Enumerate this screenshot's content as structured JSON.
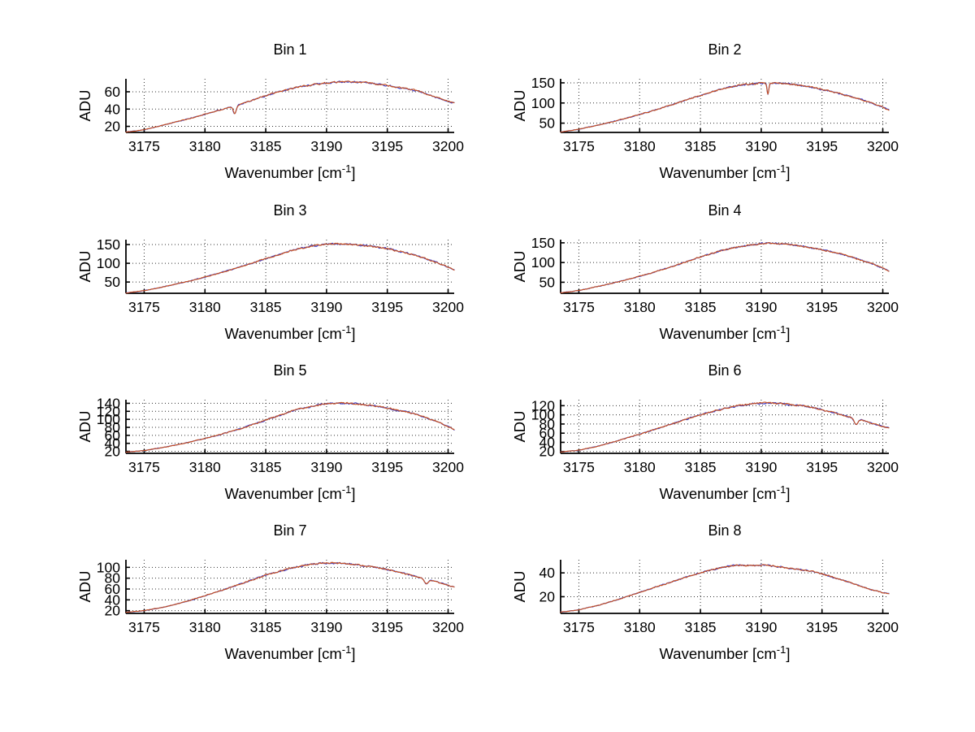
{
  "figure": {
    "background": "#ffffff",
    "grid_color": "#303030",
    "spine_color": "#000000",
    "text_color": "#000000"
  },
  "labels": {
    "ylabel": "ADU",
    "xlabel_main": "Wavenumber [cm",
    "xlabel_sup": "-1",
    "xlabel_end": "]"
  },
  "x_axis": {
    "lim": [
      3173.5,
      3200.5
    ],
    "ticks": [
      3175,
      3180,
      3185,
      3190,
      3195,
      3200
    ]
  },
  "series_style": [
    {
      "name": "spectrum-blue",
      "color": "#4242c8",
      "width": 1.2
    },
    {
      "name": "spectrum-red",
      "color": "#c8501e",
      "width": 1.1
    }
  ],
  "chart_data": [
    {
      "type": "line",
      "title": "Bin 1",
      "ylabel": "ADU",
      "xlabel": "Wavenumber [cm-1]",
      "grid": true,
      "xlim": [
        3173.5,
        3200.5
      ],
      "ylim": [
        13,
        75
      ],
      "yticks": [
        20,
        40,
        60
      ],
      "anchors": [
        [
          3173.5,
          13.5
        ],
        [
          3175,
          16
        ],
        [
          3177,
          23
        ],
        [
          3179,
          30
        ],
        [
          3181,
          38
        ],
        [
          3182.2,
          43
        ],
        [
          3183,
          46
        ],
        [
          3184.5,
          53
        ],
        [
          3186,
          60
        ],
        [
          3187.5,
          65
        ],
        [
          3189,
          68.5
        ],
        [
          3190.5,
          71
        ],
        [
          3191.8,
          72
        ],
        [
          3193,
          71
        ],
        [
          3194.5,
          68.5
        ],
        [
          3196,
          65
        ],
        [
          3197.5,
          61
        ],
        [
          3198.7,
          55
        ],
        [
          3199.8,
          50
        ],
        [
          3200.5,
          47
        ]
      ],
      "dips": [
        {
          "x": 3182.45,
          "depth": 9,
          "width": 0.18
        }
      ]
    },
    {
      "type": "line",
      "title": "Bin 2",
      "ylabel": "ADU",
      "xlabel": "Wavenumber [cm-1]",
      "grid": true,
      "xlim": [
        3173.5,
        3200.5
      ],
      "ylim": [
        27,
        160
      ],
      "yticks": [
        50,
        100,
        150
      ],
      "anchors": [
        [
          3173.5,
          28
        ],
        [
          3175,
          35
        ],
        [
          3177,
          48
        ],
        [
          3179,
          63
        ],
        [
          3181,
          80
        ],
        [
          3183,
          99
        ],
        [
          3184.5,
          114
        ],
        [
          3186,
          128
        ],
        [
          3187.3,
          139
        ],
        [
          3188.5,
          145
        ],
        [
          3189.8,
          149
        ],
        [
          3191,
          150
        ],
        [
          3192.5,
          147
        ],
        [
          3194,
          140
        ],
        [
          3195.5,
          131
        ],
        [
          3197,
          119
        ],
        [
          3198.5,
          106
        ],
        [
          3199.8,
          92
        ],
        [
          3200.5,
          83
        ]
      ],
      "dips": [
        {
          "x": 3190.55,
          "depth": 27,
          "width": 0.1
        }
      ]
    },
    {
      "type": "line",
      "title": "Bin 3",
      "ylabel": "ADU",
      "xlabel": "Wavenumber [cm-1]",
      "grid": true,
      "xlim": [
        3173.5,
        3200.5
      ],
      "ylim": [
        20,
        163
      ],
      "yticks": [
        50,
        100,
        150
      ],
      "anchors": [
        [
          3173.5,
          21
        ],
        [
          3175,
          27
        ],
        [
          3177,
          40
        ],
        [
          3179,
          55
        ],
        [
          3181,
          72
        ],
        [
          3183,
          91
        ],
        [
          3184.8,
          110
        ],
        [
          3186,
          122
        ],
        [
          3187.2,
          135
        ],
        [
          3188.3,
          143
        ],
        [
          3189.3,
          149
        ],
        [
          3190.3,
          152
        ],
        [
          3191.5,
          152
        ],
        [
          3192.8,
          149
        ],
        [
          3194,
          144
        ],
        [
          3195.3,
          137
        ],
        [
          3196.5,
          128
        ],
        [
          3197.8,
          116
        ],
        [
          3199,
          103
        ],
        [
          3200,
          90
        ],
        [
          3200.5,
          82
        ]
      ],
      "dips": []
    },
    {
      "type": "line",
      "title": "Bin 4",
      "ylabel": "ADU",
      "xlabel": "Wavenumber [cm-1]",
      "grid": true,
      "xlim": [
        3173.5,
        3200.5
      ],
      "ylim": [
        22,
        158
      ],
      "yticks": [
        50,
        100,
        150
      ],
      "anchors": [
        [
          3173.5,
          23
        ],
        [
          3175,
          29
        ],
        [
          3177,
          42
        ],
        [
          3179,
          57
        ],
        [
          3181,
          74
        ],
        [
          3183,
          93
        ],
        [
          3184.8,
          112
        ],
        [
          3186.3,
          126
        ],
        [
          3187.5,
          136
        ],
        [
          3188.8,
          143
        ],
        [
          3190,
          148
        ],
        [
          3191,
          149
        ],
        [
          3192.3,
          146
        ],
        [
          3193.5,
          141
        ],
        [
          3195,
          133
        ],
        [
          3196.5,
          122
        ],
        [
          3197.8,
          110
        ],
        [
          3199,
          98
        ],
        [
          3200,
          86
        ],
        [
          3200.5,
          78
        ]
      ],
      "dips": []
    },
    {
      "type": "line",
      "title": "Bin 5",
      "ylabel": "ADU",
      "xlabel": "Wavenumber [cm-1]",
      "grid": true,
      "xlim": [
        3173.5,
        3200.5
      ],
      "ylim": [
        15,
        149
      ],
      "yticks": [
        20,
        40,
        60,
        80,
        100,
        120,
        140
      ],
      "anchors": [
        [
          3173.5,
          18
        ],
        [
          3175,
          22
        ],
        [
          3177,
          32
        ],
        [
          3179,
          45
        ],
        [
          3181,
          60
        ],
        [
          3183,
          77
        ],
        [
          3184.8,
          96
        ],
        [
          3186.3,
          112
        ],
        [
          3187.5,
          124
        ],
        [
          3188.8,
          133
        ],
        [
          3190,
          139
        ],
        [
          3191,
          141
        ],
        [
          3192.3,
          139
        ],
        [
          3193.8,
          134
        ],
        [
          3195.3,
          127
        ],
        [
          3196.8,
          117
        ],
        [
          3198,
          106
        ],
        [
          3199.2,
          93
        ],
        [
          3200.2,
          80
        ],
        [
          3200.5,
          74
        ]
      ],
      "dips": []
    },
    {
      "type": "line",
      "title": "Bin 6",
      "ylabel": "ADU",
      "xlabel": "Wavenumber [cm-1]",
      "grid": true,
      "xlim": [
        3173.5,
        3200.5
      ],
      "ylim": [
        16,
        133
      ],
      "yticks": [
        20,
        40,
        60,
        80,
        100,
        120
      ],
      "anchors": [
        [
          3173.5,
          19
        ],
        [
          3175,
          23
        ],
        [
          3176.5,
          31
        ],
        [
          3178,
          42
        ],
        [
          3179.5,
          54
        ],
        [
          3181,
          66
        ],
        [
          3182.5,
          79
        ],
        [
          3184,
          92
        ],
        [
          3185.5,
          104
        ],
        [
          3187,
          114
        ],
        [
          3188.3,
          121
        ],
        [
          3189.5,
          125
        ],
        [
          3190.8,
          126
        ],
        [
          3192,
          124
        ],
        [
          3193.3,
          120
        ],
        [
          3194.5,
          114
        ],
        [
          3195.8,
          106
        ],
        [
          3197,
          97
        ],
        [
          3198.2,
          89
        ],
        [
          3199,
          82
        ],
        [
          3200,
          75
        ],
        [
          3200.5,
          71
        ]
      ],
      "dips": [
        {
          "x": 3197.8,
          "depth": 12,
          "width": 0.22
        }
      ]
    },
    {
      "type": "line",
      "title": "Bin 7",
      "ylabel": "ADU",
      "xlabel": "Wavenumber [cm-1]",
      "grid": true,
      "xlim": [
        3173.5,
        3200.5
      ],
      "ylim": [
        15,
        114
      ],
      "yticks": [
        20,
        40,
        60,
        80,
        100
      ],
      "anchors": [
        [
          3173.5,
          17
        ],
        [
          3175,
          20
        ],
        [
          3176.5,
          26
        ],
        [
          3178,
          34
        ],
        [
          3179.5,
          44
        ],
        [
          3181,
          55
        ],
        [
          3182.5,
          66
        ],
        [
          3184,
          78
        ],
        [
          3185.5,
          89
        ],
        [
          3187,
          98
        ],
        [
          3188.3,
          104
        ],
        [
          3189.5,
          107.5
        ],
        [
          3190.8,
          108
        ],
        [
          3192,
          106
        ],
        [
          3193.5,
          102
        ],
        [
          3195,
          96
        ],
        [
          3196.3,
          89
        ],
        [
          3197.5,
          82
        ],
        [
          3198.5,
          76
        ],
        [
          3199.5,
          70
        ],
        [
          3200.5,
          64
        ]
      ],
      "dips": [
        {
          "x": 3198.2,
          "depth": 8,
          "width": 0.2
        }
      ]
    },
    {
      "type": "line",
      "title": "Bin 8",
      "ylabel": "ADU",
      "xlabel": "Wavenumber [cm-1]",
      "grid": true,
      "xlim": [
        3173.5,
        3200.5
      ],
      "ylim": [
        6,
        51
      ],
      "yticks": [
        20,
        40
      ],
      "anchors": [
        [
          3173.5,
          7
        ],
        [
          3175,
          9
        ],
        [
          3176.5,
          12.5
        ],
        [
          3178,
          17
        ],
        [
          3179.5,
          22
        ],
        [
          3181,
          27
        ],
        [
          3182.5,
          32
        ],
        [
          3184,
          37
        ],
        [
          3185.3,
          41
        ],
        [
          3186.5,
          44
        ],
        [
          3187.8,
          46.5
        ],
        [
          3189,
          46
        ],
        [
          3190.3,
          46.5
        ],
        [
          3191.5,
          45
        ],
        [
          3193,
          43
        ],
        [
          3194.3,
          41
        ],
        [
          3195.5,
          37.5
        ],
        [
          3196.8,
          33.5
        ],
        [
          3198,
          29.5
        ],
        [
          3199,
          26
        ],
        [
          3200,
          23.5
        ],
        [
          3200.5,
          22.5
        ]
      ],
      "dips": []
    }
  ]
}
